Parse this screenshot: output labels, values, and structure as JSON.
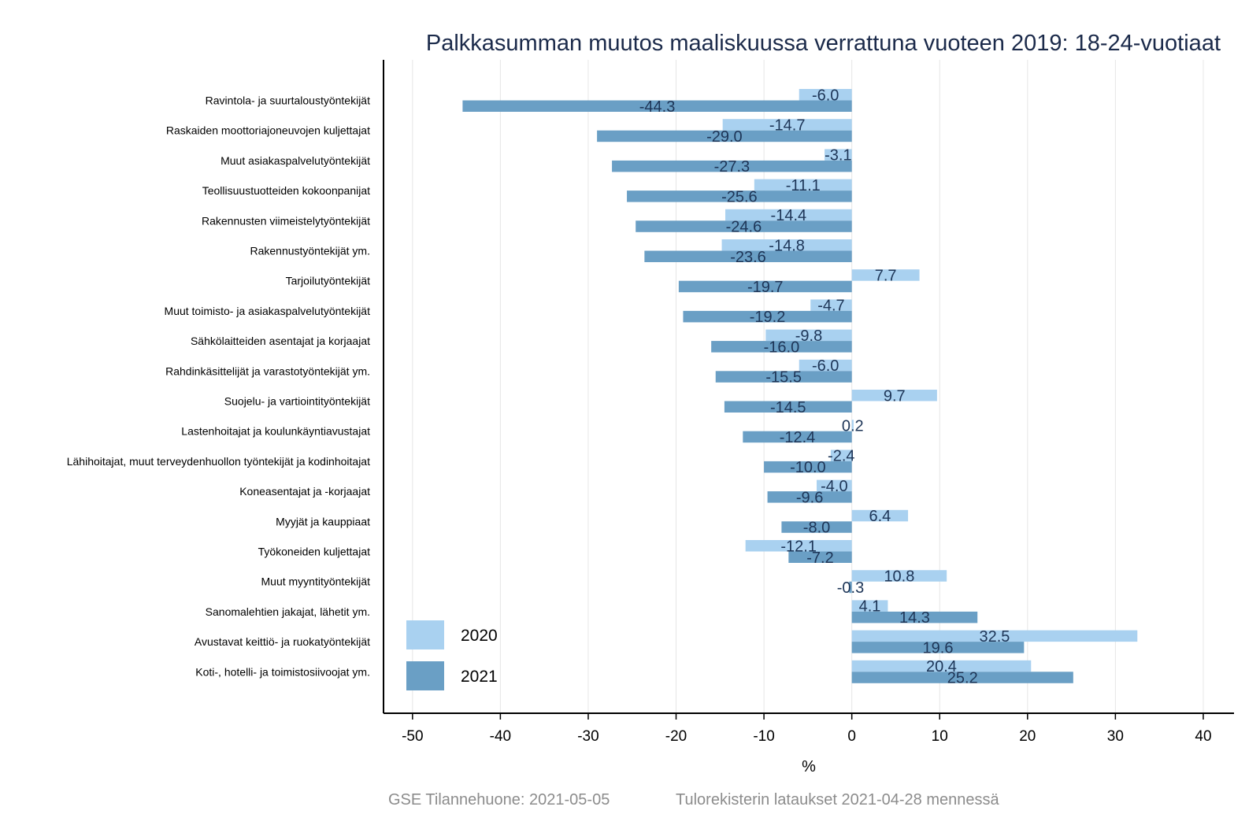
{
  "chart_data": {
    "type": "bar",
    "orientation": "horizontal",
    "title": "Palkkasumman muutos maaliskuussa verrattuna vuoteen 2019: 18-24-vuotiaat",
    "xlabel": "%",
    "ylabel": "",
    "xlim": [
      -53.3,
      43.5
    ],
    "xticks": [
      -50,
      -40,
      -30,
      -20,
      -10,
      0,
      10,
      20,
      30,
      40
    ],
    "xtick_labels": [
      "-50",
      "-40",
      "-30",
      "-20",
      "-10",
      "0",
      "10",
      "20",
      "30",
      "40"
    ],
    "grid": "vertical",
    "legend_position": "bottom-left",
    "categories": [
      "Ravintola- ja suurtaloustyöntekijät",
      "Raskaiden moottoriajoneuvojen kuljettajat",
      "Muut asiakaspalvelutyöntekijät",
      "Teollisuustuotteiden kokoonpanijat",
      "Rakennusten viimeistelytyöntekijät",
      "Rakennustyöntekijät ym.",
      "Tarjoilutyöntekijät",
      "Muut toimisto- ja asiakaspalvelutyöntekijät",
      "Sähkölaitteiden asentajat ja korjaajat",
      "Rahdinkäsittelijät ja varastotyöntekijät ym.",
      "Suojelu- ja vartiointityöntekijät",
      "Lastenhoitajat ja koulunkäyntiavustajat",
      "Lähihoitajat, muut terveydenhuollon työntekijät ja kodinhoitajat",
      "Koneasentajat ja -korjaajat",
      "Myyjät ja kauppiaat",
      "Työkoneiden kuljettajat",
      "Muut myyntityöntekijät",
      "Sanomalehtien jakajat, lähetit ym.",
      "Avustavat keittiö- ja ruokatyöntekijät",
      "Koti-, hotelli- ja toimistosiivoojat ym."
    ],
    "series": [
      {
        "name": "2020",
        "color": "#a9d1f0",
        "values": [
          -6.0,
          -14.7,
          -3.1,
          -11.1,
          -14.4,
          -14.8,
          7.7,
          -4.7,
          -9.8,
          -6.0,
          9.7,
          0.2,
          -2.4,
          -4.0,
          6.4,
          -12.1,
          10.8,
          4.1,
          32.5,
          20.4
        ],
        "labels": [
          "-6.0",
          "-14.7",
          "-3.1",
          "-11.1",
          "-14.4",
          "-14.8",
          "7.7",
          "-4.7",
          "-9.8",
          "-6.0",
          "9.7",
          "0.2",
          "-2.4",
          "-4.0",
          "6.4",
          "-12.1",
          "10.8",
          "4.1",
          "32.5",
          "20.4"
        ]
      },
      {
        "name": "2021",
        "color": "#6a9fc5",
        "values": [
          -44.3,
          -29.0,
          -27.3,
          -25.6,
          -24.6,
          -23.6,
          -19.7,
          -19.2,
          -16.0,
          -15.5,
          -14.5,
          -12.4,
          -10.0,
          -9.6,
          -8.0,
          -7.2,
          -0.3,
          14.3,
          19.6,
          25.2
        ],
        "labels": [
          "-44.3",
          "-29.0",
          "-27.3",
          "-25.6",
          "-24.6",
          "-23.6",
          "-19.7",
          "-19.2",
          "-16.0",
          "-15.5",
          "-14.5",
          "-12.4",
          "-10.0",
          "-9.6",
          "-8.0",
          "-7.2",
          "-0.3",
          "14.3",
          "19.6",
          "25.2"
        ]
      }
    ]
  },
  "footer": {
    "source": "GSE Tilannehuone: 2021-05-05",
    "note": "Tulorekisterin lataukset 2021-04-28 mennessä"
  }
}
